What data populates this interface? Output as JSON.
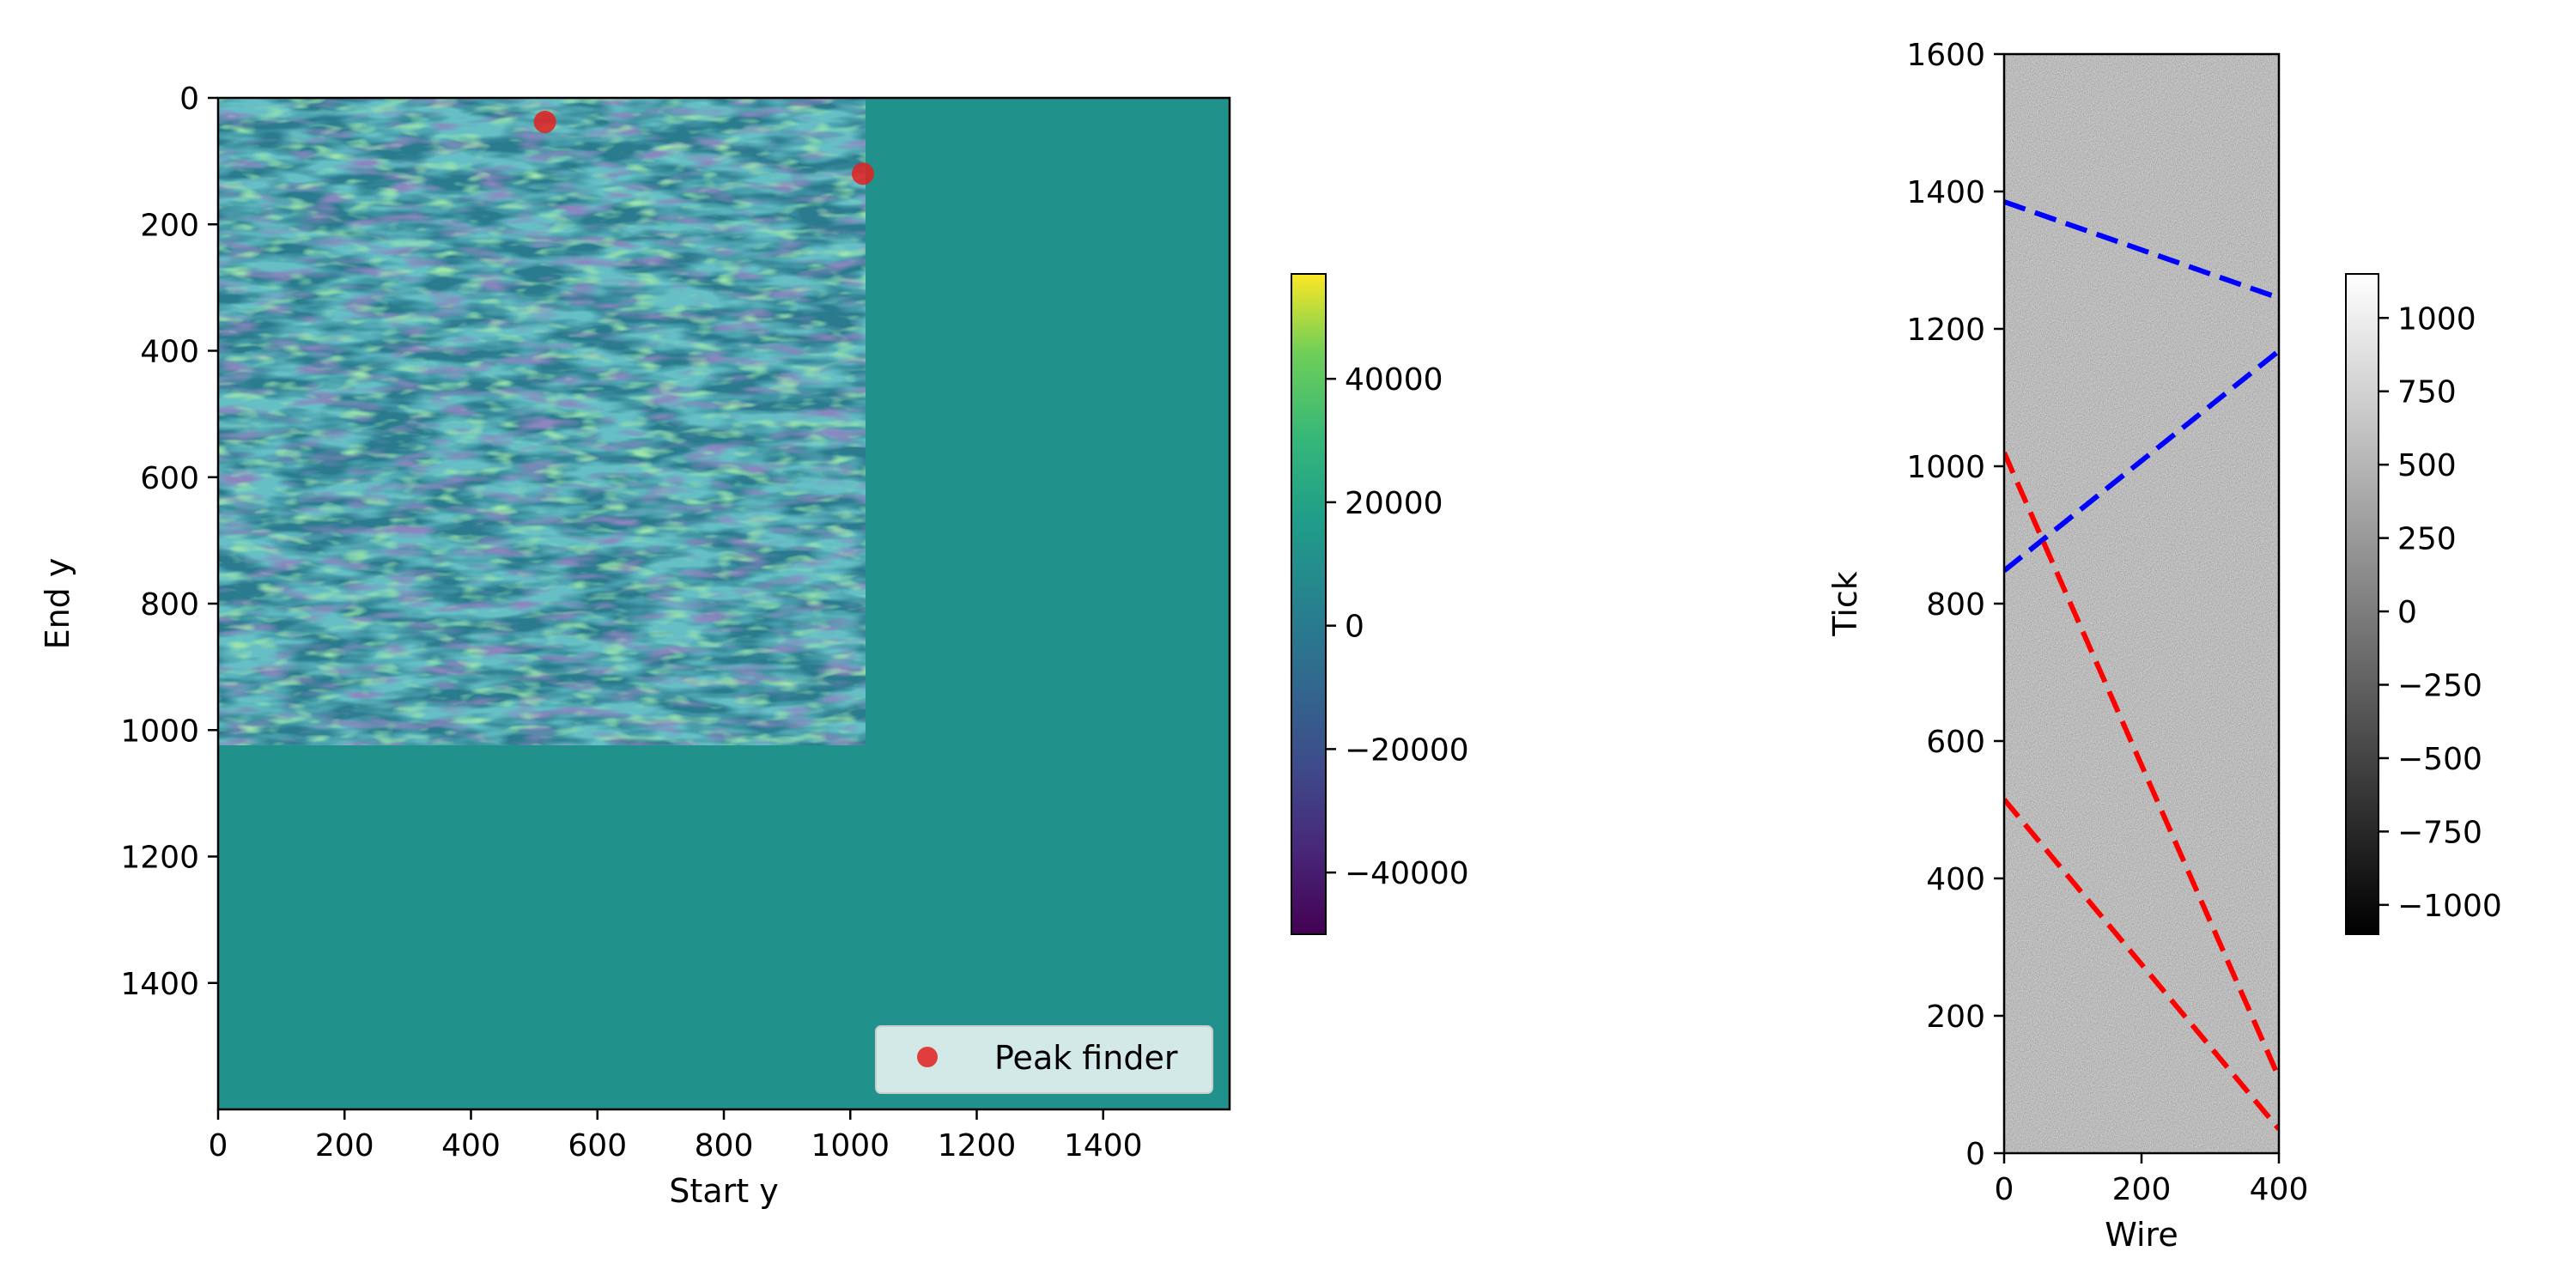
{
  "chart_data": [
    {
      "type": "heatmap",
      "xlabel": "Start y",
      "ylabel": "End y",
      "xlim": [
        0,
        1600
      ],
      "ylim": [
        1600,
        0
      ],
      "x_ticks": [
        0,
        200,
        400,
        600,
        800,
        1000,
        1200,
        1400
      ],
      "y_ticks": [
        0,
        200,
        400,
        600,
        800,
        1000,
        1200,
        1400
      ],
      "tick_labels_x": [
        "0",
        "200",
        "400",
        "600",
        "800",
        "1000",
        "1200",
        "1400"
      ],
      "tick_labels_y": [
        "0",
        "200",
        "400",
        "600",
        "800",
        "1000",
        "1200",
        "1400"
      ],
      "textured_region": {
        "x": [
          0,
          1024
        ],
        "y": [
          0,
          1024
        ]
      },
      "background_value": 0,
      "colormap": "viridis",
      "colorbar": {
        "range": [
          -50000,
          57000
        ],
        "ticks": [
          40000,
          20000,
          0,
          -20000,
          -40000
        ],
        "tick_labels": [
          "40000",
          "20000",
          "0",
          "−20000",
          "−40000"
        ]
      },
      "series": [
        {
          "name": "Peak finder",
          "marker": "circle",
          "color": "#e32020",
          "points": [
            {
              "x": 517,
              "y": 38
            },
            {
              "x": 1020,
              "y": 120
            }
          ]
        }
      ],
      "legend": {
        "position": "lower-right",
        "entries": [
          "Peak finder"
        ]
      }
    },
    {
      "type": "heatmap",
      "xlabel": "Wire",
      "ylabel": "Tick",
      "xlim": [
        0,
        400
      ],
      "ylim": [
        0,
        1600
      ],
      "x_ticks": [
        0,
        200,
        400
      ],
      "y_ticks": [
        0,
        200,
        400,
        600,
        800,
        1000,
        1200,
        1400,
        1600
      ],
      "tick_labels_x": [
        "0",
        "200",
        "400"
      ],
      "tick_labels_y": [
        "0",
        "200",
        "400",
        "600",
        "800",
        "1000",
        "1200",
        "1400",
        "1600"
      ],
      "colormap": "gray",
      "colorbar": {
        "range": [
          -1100,
          1150
        ],
        "ticks": [
          1000,
          750,
          500,
          250,
          0,
          -250,
          -500,
          -750,
          -1000
        ],
        "tick_labels": [
          "1000",
          "750",
          "500",
          "250",
          "0",
          "−250",
          "−500",
          "−750",
          "−1000"
        ]
      },
      "lines": [
        {
          "color": "#0000ff",
          "style": "dashed",
          "x": [
            0,
            400
          ],
          "y": [
            1385,
            1245
          ]
        },
        {
          "color": "#0000ff",
          "style": "dashed",
          "x": [
            0,
            400
          ],
          "y": [
            848,
            1168
          ]
        },
        {
          "color": "#ff0000",
          "style": "dashed",
          "x": [
            0,
            400
          ],
          "y": [
            1020,
            110
          ]
        },
        {
          "color": "#ff0000",
          "style": "dashed",
          "x": [
            0,
            400
          ],
          "y": [
            515,
            35
          ]
        }
      ]
    }
  ]
}
